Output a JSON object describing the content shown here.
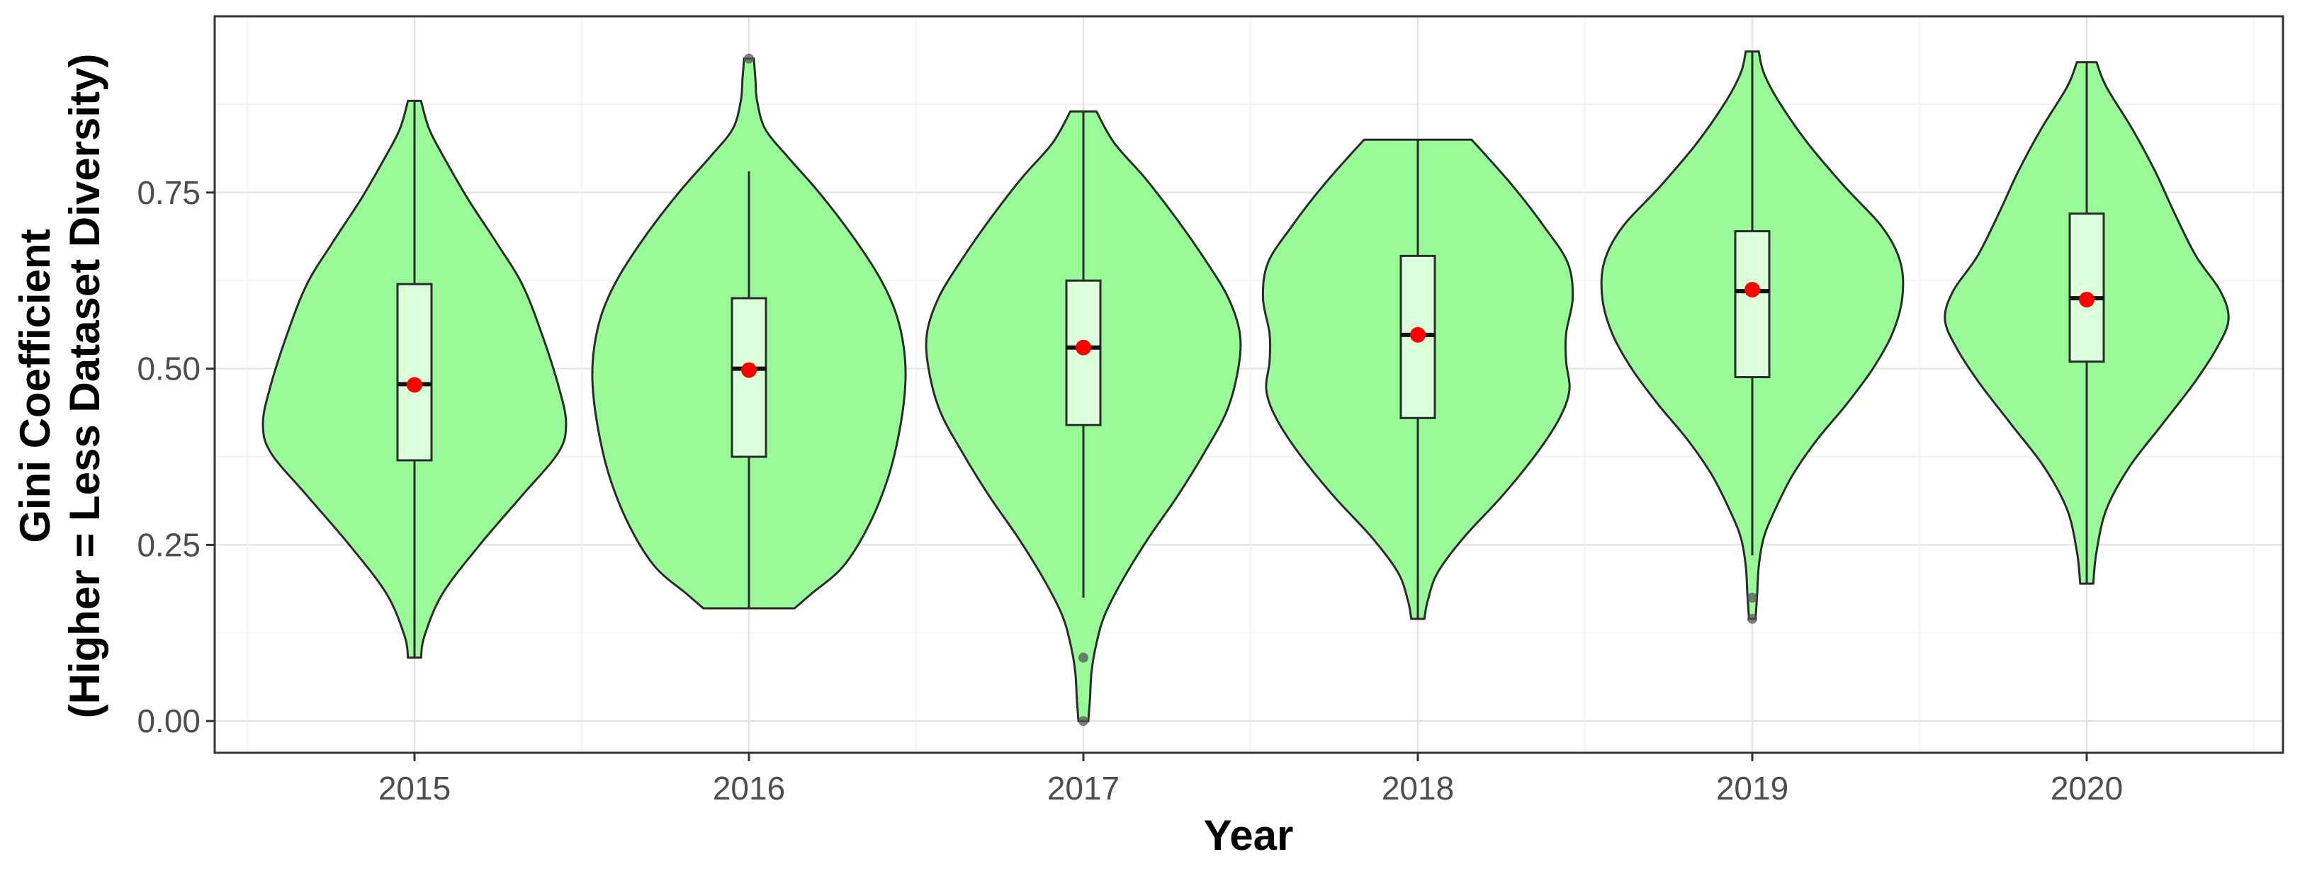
{
  "chart_data": {
    "type": "violin",
    "xlabel": "Year",
    "ylabel": "Gini Coefficient",
    "ylabel_line2": "(Higher = Less Dataset Diversity)",
    "categories": [
      "2015",
      "2016",
      "2017",
      "2018",
      "2019",
      "2020"
    ],
    "y_ticks": [
      "0.00",
      "0.25",
      "0.50",
      "0.75"
    ],
    "y_tick_values": [
      0,
      0.25,
      0.5,
      0.75
    ],
    "ylim": [
      -0.045,
      1.0
    ],
    "grid": true,
    "colors": {
      "violin_fill": "#98fb98",
      "violin_stroke": "#2b2b2b",
      "box_fill": "#dcffdc",
      "mean_point": "#ff0000",
      "outlier": "#555555"
    },
    "violins": [
      {
        "year": "2015",
        "min": 0.09,
        "max": 0.88,
        "profile": [
          [
            0.09,
            0.04
          ],
          [
            0.12,
            0.06
          ],
          [
            0.18,
            0.17
          ],
          [
            0.25,
            0.4
          ],
          [
            0.32,
            0.66
          ],
          [
            0.38,
            0.88
          ],
          [
            0.42,
            0.93
          ],
          [
            0.47,
            0.89
          ],
          [
            0.55,
            0.78
          ],
          [
            0.62,
            0.66
          ],
          [
            0.68,
            0.5
          ],
          [
            0.74,
            0.33
          ],
          [
            0.8,
            0.18
          ],
          [
            0.84,
            0.09
          ],
          [
            0.88,
            0.04
          ]
        ],
        "box": {
          "q1": 0.37,
          "median": 0.478,
          "q3": 0.62,
          "wmin": 0.09,
          "wmax": 0.88
        },
        "mean": 0.477,
        "outliers": []
      },
      {
        "year": "2016",
        "min": 0.16,
        "max": 0.94,
        "profile": [
          [
            0.16,
            0.28
          ],
          [
            0.18,
            0.38
          ],
          [
            0.22,
            0.58
          ],
          [
            0.28,
            0.74
          ],
          [
            0.35,
            0.86
          ],
          [
            0.42,
            0.93
          ],
          [
            0.48,
            0.96
          ],
          [
            0.53,
            0.95
          ],
          [
            0.58,
            0.9
          ],
          [
            0.63,
            0.8
          ],
          [
            0.69,
            0.63
          ],
          [
            0.75,
            0.43
          ],
          [
            0.8,
            0.24
          ],
          [
            0.84,
            0.1
          ],
          [
            0.88,
            0.05
          ],
          [
            0.91,
            0.04
          ],
          [
            0.94,
            0.03
          ]
        ],
        "box": {
          "q1": 0.375,
          "median": 0.5,
          "q3": 0.6,
          "wmin": 0.16,
          "wmax": 0.78
        },
        "mean": 0.498,
        "outliers": [
          0.94
        ]
      },
      {
        "year": "2017",
        "min": 0.0,
        "max": 0.865,
        "profile": [
          [
            0.0,
            0.03
          ],
          [
            0.03,
            0.04
          ],
          [
            0.07,
            0.05
          ],
          [
            0.11,
            0.08
          ],
          [
            0.15,
            0.13
          ],
          [
            0.2,
            0.24
          ],
          [
            0.26,
            0.4
          ],
          [
            0.32,
            0.58
          ],
          [
            0.38,
            0.74
          ],
          [
            0.44,
            0.88
          ],
          [
            0.5,
            0.95
          ],
          [
            0.55,
            0.96
          ],
          [
            0.6,
            0.89
          ],
          [
            0.65,
            0.76
          ],
          [
            0.71,
            0.58
          ],
          [
            0.77,
            0.38
          ],
          [
            0.82,
            0.19
          ],
          [
            0.865,
            0.08
          ]
        ],
        "box": {
          "q1": 0.42,
          "median": 0.53,
          "q3": 0.625,
          "wmin": 0.175,
          "wmax": 0.865
        },
        "mean": 0.53,
        "outliers": [
          0.09,
          0.0
        ]
      },
      {
        "year": "2018",
        "min": 0.145,
        "max": 0.825,
        "profile": [
          [
            0.145,
            0.04
          ],
          [
            0.17,
            0.06
          ],
          [
            0.21,
            0.12
          ],
          [
            0.26,
            0.28
          ],
          [
            0.32,
            0.52
          ],
          [
            0.38,
            0.73
          ],
          [
            0.43,
            0.87
          ],
          [
            0.47,
            0.93
          ],
          [
            0.51,
            0.91
          ],
          [
            0.55,
            0.91
          ],
          [
            0.6,
            0.95
          ],
          [
            0.65,
            0.92
          ],
          [
            0.7,
            0.78
          ],
          [
            0.76,
            0.58
          ],
          [
            0.825,
            0.33
          ]
        ],
        "box": {
          "q1": 0.43,
          "median": 0.548,
          "q3": 0.66,
          "wmin": 0.145,
          "wmax": 0.825
        },
        "mean": 0.548,
        "outliers": []
      },
      {
        "year": "2019",
        "min": 0.145,
        "max": 0.95,
        "profile": [
          [
            0.145,
            0.02
          ],
          [
            0.18,
            0.03
          ],
          [
            0.22,
            0.04
          ],
          [
            0.26,
            0.07
          ],
          [
            0.3,
            0.14
          ],
          [
            0.35,
            0.25
          ],
          [
            0.4,
            0.4
          ],
          [
            0.45,
            0.58
          ],
          [
            0.5,
            0.74
          ],
          [
            0.55,
            0.86
          ],
          [
            0.6,
            0.92
          ],
          [
            0.65,
            0.91
          ],
          [
            0.7,
            0.8
          ],
          [
            0.76,
            0.56
          ],
          [
            0.82,
            0.34
          ],
          [
            0.88,
            0.16
          ],
          [
            0.92,
            0.07
          ],
          [
            0.95,
            0.04
          ]
        ],
        "box": {
          "q1": 0.488,
          "median": 0.61,
          "q3": 0.695,
          "wmin": 0.235,
          "wmax": 0.95
        },
        "mean": 0.612,
        "outliers": [
          0.175,
          0.145
        ]
      },
      {
        "year": "2020",
        "min": 0.195,
        "max": 0.935,
        "profile": [
          [
            0.195,
            0.04
          ],
          [
            0.24,
            0.06
          ],
          [
            0.3,
            0.12
          ],
          [
            0.36,
            0.26
          ],
          [
            0.42,
            0.46
          ],
          [
            0.48,
            0.66
          ],
          [
            0.53,
            0.8
          ],
          [
            0.57,
            0.87
          ],
          [
            0.61,
            0.82
          ],
          [
            0.66,
            0.67
          ],
          [
            0.72,
            0.54
          ],
          [
            0.78,
            0.42
          ],
          [
            0.84,
            0.28
          ],
          [
            0.9,
            0.12
          ],
          [
            0.935,
            0.06
          ]
        ],
        "box": {
          "q1": 0.51,
          "median": 0.6,
          "q3": 0.72,
          "wmin": 0.195,
          "wmax": 0.935
        },
        "mean": 0.598,
        "outliers": []
      }
    ]
  }
}
